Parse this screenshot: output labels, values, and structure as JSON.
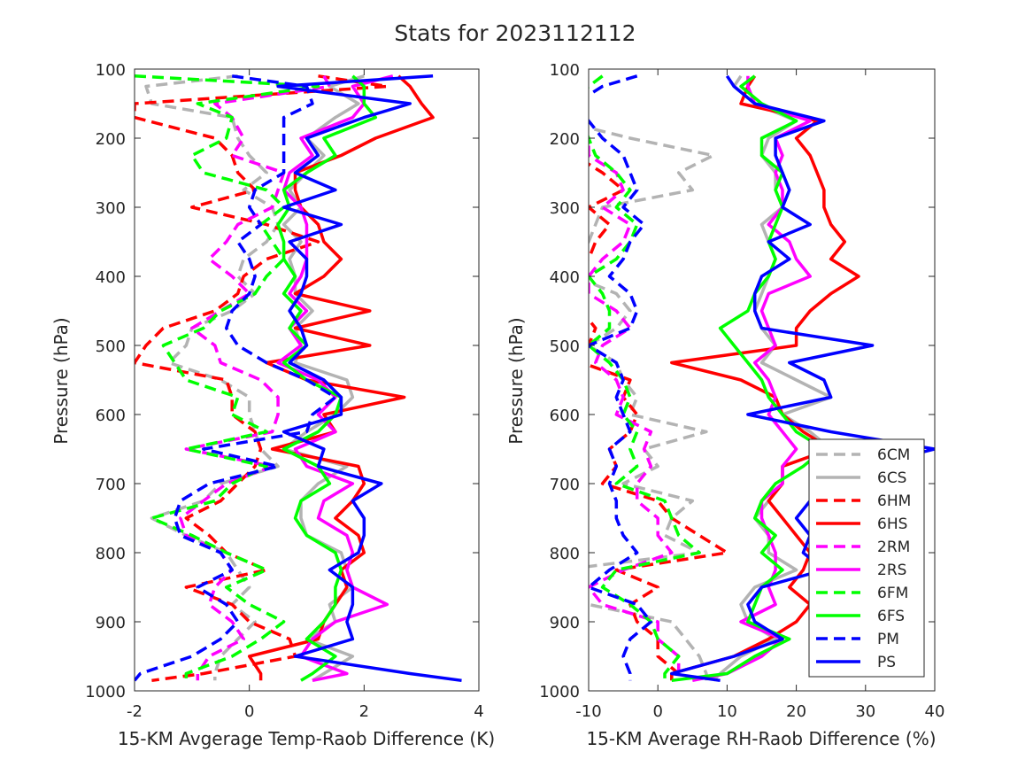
{
  "figure_title": "Stats for 2023112112",
  "chart_data": [
    {
      "type": "line",
      "xlabel": "15-KM Avgerage Temp-Raob Difference (K)",
      "ylabel": "Pressure (hPa)",
      "xlim": [
        -2,
        4
      ],
      "ylim": [
        100,
        1000
      ],
      "y_reversed": true,
      "xticks": [
        "-2",
        "0",
        "2",
        "4"
      ],
      "yticks": [
        "100",
        "200",
        "300",
        "400",
        "500",
        "600",
        "700",
        "800",
        "900",
        "1000"
      ],
      "grid": false,
      "y": [
        110,
        125,
        150,
        170,
        200,
        225,
        250,
        275,
        300,
        325,
        350,
        375,
        400,
        425,
        450,
        475,
        500,
        525,
        550,
        575,
        600,
        625,
        650,
        675,
        700,
        725,
        750,
        775,
        800,
        825,
        850,
        875,
        900,
        925,
        950,
        975,
        985
      ],
      "series": [
        {
          "name": "6CM",
          "color": "#b3b3b3",
          "dash": true,
          "values": [
            -0.2,
            -1.8,
            -1.7,
            -0.3,
            -0.2,
            0.0,
            0.3,
            -0.1,
            0.4,
            0.5,
            0.3,
            -0.1,
            -0.2,
            0.1,
            -0.3,
            -1.0,
            -1.1,
            -1.4,
            -0.5,
            0.0,
            0.0,
            0.1,
            0.2,
            0.5,
            -0.5,
            -0.8,
            -1.7,
            -1.1,
            -0.4,
            -0.2,
            0.0,
            -0.3,
            0.1,
            -0.2,
            -0.5,
            -0.6,
            -0.6
          ]
        },
        {
          "name": "6CS",
          "color": "#b3b3b3",
          "dash": false,
          "values": [
            2.0,
            1.4,
            1.9,
            1.5,
            1.0,
            1.3,
            1.0,
            0.7,
            0.9,
            0.6,
            0.9,
            0.7,
            0.8,
            0.8,
            1.1,
            0.8,
            0.9,
            0.8,
            1.7,
            1.8,
            1.5,
            1.0,
            0.6,
            1.7,
            1.2,
            0.9,
            0.9,
            1.0,
            1.6,
            1.7,
            1.8,
            1.4,
            1.5,
            1.0,
            1.8,
            1.3,
            1.1
          ]
        },
        {
          "name": "6HM",
          "color": "#ff0000",
          "dash": true,
          "values": [
            1.2,
            2.4,
            -2.0,
            -2.0,
            -0.6,
            -0.3,
            -0.2,
            0.1,
            -1.0,
            0.3,
            1.2,
            0.3,
            -0.1,
            -0.2,
            -0.6,
            -1.5,
            -1.8,
            -2.0,
            -0.4,
            -0.3,
            -0.3,
            0.1,
            0.2,
            0.1,
            -0.2,
            -0.5,
            -1.1,
            -0.7,
            -0.4,
            0.3,
            -1.1,
            -0.3,
            0.0,
            0.7,
            0.8,
            -0.8,
            -1.7
          ]
        },
        {
          "name": "6HS",
          "color": "#ff0000",
          "dash": false,
          "values": [
            2.6,
            2.8,
            3.0,
            3.2,
            2.2,
            1.6,
            0.8,
            0.8,
            0.9,
            1.2,
            1.3,
            1.6,
            1.3,
            0.8,
            2.1,
            0.8,
            2.1,
            0.3,
            1.0,
            2.7,
            1.3,
            1.5,
            0.4,
            1.9,
            2.0,
            1.8,
            1.5,
            1.9,
            2.0,
            1.6,
            1.7,
            1.5,
            1.3,
            1.2,
            0.0,
            0.2,
            0.2
          ]
        },
        {
          "name": "2RM",
          "color": "#ff00ff",
          "dash": true,
          "values": [
            1.3,
            1.4,
            -0.6,
            -0.3,
            -0.1,
            -0.3,
            0.6,
            0.5,
            0.4,
            -0.2,
            -0.4,
            -0.7,
            -0.3,
            0.0,
            -0.5,
            -1.0,
            -0.6,
            -0.5,
            0.2,
            0.5,
            0.5,
            0.4,
            -1.1,
            0.4,
            -0.4,
            -0.8,
            -1.2,
            -1.1,
            -0.5,
            -0.3,
            -0.6,
            -0.7,
            -0.3,
            -0.1,
            -0.7,
            -0.9,
            -0.9
          ]
        },
        {
          "name": "2RS",
          "color": "#ff00ff",
          "dash": false,
          "values": [
            2.5,
            1.8,
            2.0,
            1.8,
            0.9,
            1.1,
            0.7,
            0.6,
            0.9,
            1.0,
            1.0,
            1.0,
            0.9,
            0.7,
            1.0,
            0.7,
            0.9,
            0.5,
            1.2,
            1.5,
            1.2,
            1.5,
            0.8,
            1.0,
            1.8,
            1.3,
            1.2,
            1.7,
            1.8,
            1.7,
            1.8,
            2.4,
            1.5,
            1.1,
            0.9,
            1.7,
            1.1
          ]
        },
        {
          "name": "6FM",
          "color": "#00ff00",
          "dash": true,
          "values": [
            -2.0,
            1.2,
            -0.9,
            -0.3,
            -0.4,
            -1.0,
            -0.8,
            0.3,
            0.6,
            0.2,
            0.4,
            0.6,
            0.3,
            0.1,
            -0.5,
            -0.8,
            -1.5,
            -1.3,
            -1.1,
            -0.2,
            -0.3,
            0.3,
            -1.1,
            0.3,
            -0.3,
            -0.6,
            -1.7,
            -1.0,
            -0.4,
            0.3,
            -0.4,
            0.0,
            0.6,
            0.2,
            -0.3,
            -1.1,
            -1.1
          ]
        },
        {
          "name": "6FS",
          "color": "#00ff00",
          "dash": false,
          "values": [
            1.8,
            2.0,
            2.0,
            2.2,
            1.3,
            1.5,
            1.0,
            0.6,
            0.7,
            0.5,
            0.6,
            0.6,
            0.8,
            0.6,
            0.9,
            0.7,
            1.0,
            0.6,
            1.0,
            1.6,
            1.5,
            1.2,
            0.6,
            1.2,
            1.4,
            0.9,
            0.8,
            1.0,
            1.5,
            1.6,
            1.5,
            1.5,
            1.3,
            1.0,
            1.5,
            1.1,
            0.9
          ]
        },
        {
          "name": "PM",
          "color": "#0000ff",
          "dash": true,
          "values": [
            -0.3,
            1.0,
            1.1,
            0.6,
            0.6,
            0.6,
            0.6,
            0.1,
            0.0,
            0.2,
            -0.2,
            0.0,
            0.1,
            0.0,
            -0.3,
            -0.4,
            -0.2,
            0.3,
            1.0,
            1.5,
            1.1,
            1.0,
            -0.8,
            0.5,
            -0.7,
            -1.2,
            -1.3,
            -1.2,
            -0.5,
            -0.3,
            -0.9,
            -0.4,
            -0.2,
            -0.5,
            -1.0,
            -1.9,
            -2.0
          ]
        },
        {
          "name": "PS",
          "color": "#0000ff",
          "dash": false,
          "values": [
            3.2,
            0.5,
            2.8,
            2.0,
            1.0,
            1.2,
            0.8,
            1.5,
            0.6,
            1.6,
            0.7,
            1.0,
            1.0,
            0.9,
            0.7,
            0.9,
            1.0,
            0.7,
            1.3,
            1.6,
            1.6,
            0.6,
            1.3,
            1.2,
            2.3,
            1.8,
            2.0,
            2.0,
            1.9,
            1.4,
            1.8,
            1.8,
            1.7,
            1.8,
            0.8,
            2.8,
            3.7
          ]
        }
      ]
    },
    {
      "type": "line",
      "xlabel": "15-KM Average RH-Raob Difference (%)",
      "ylabel": "Pressure (hPa)",
      "xlim": [
        -10,
        40
      ],
      "ylim": [
        100,
        1000
      ],
      "y_reversed": true,
      "xticks": [
        "-10",
        "0",
        "10",
        "20",
        "30",
        "40"
      ],
      "yticks": [
        "100",
        "200",
        "300",
        "400",
        "500",
        "600",
        "700",
        "800",
        "900",
        "1000"
      ],
      "grid": false,
      "legend": {
        "position": "lower-right",
        "entries": [
          "6CM",
          "6CS",
          "6HM",
          "6HS",
          "2RM",
          "2RS",
          "6FM",
          "6FS",
          "PM",
          "PS"
        ]
      },
      "y": [
        110,
        125,
        150,
        175,
        200,
        225,
        250,
        275,
        300,
        325,
        350,
        375,
        400,
        425,
        450,
        475,
        500,
        525,
        550,
        575,
        600,
        625,
        650,
        675,
        700,
        725,
        750,
        775,
        800,
        825,
        850,
        875,
        900,
        925,
        950,
        975,
        985
      ],
      "series": [
        {
          "name": "6CM",
          "color": "#b3b3b3",
          "dash": true,
          "values": [
            -12,
            -14,
            -20,
            -14,
            -4,
            8,
            3,
            5,
            -8,
            -9,
            -10,
            -12,
            -12,
            -6,
            -4,
            -6,
            -10,
            -6,
            -5,
            -3,
            -4,
            7,
            -2,
            0,
            -5,
            5,
            2,
            1,
            6,
            -14,
            -14,
            -10,
            2,
            4,
            6,
            7,
            7
          ]
        },
        {
          "name": "6CS",
          "color": "#b3b3b3",
          "dash": false,
          "values": [
            12,
            11,
            14,
            20,
            16,
            15,
            17,
            17,
            18,
            15,
            16,
            17,
            16,
            15,
            14,
            15,
            17,
            15,
            20,
            25,
            18,
            22,
            25,
            18,
            18,
            16,
            14,
            16,
            16,
            20,
            14,
            12,
            13,
            17,
            12,
            9,
            8
          ]
        },
        {
          "name": "6HM",
          "color": "#ff0000",
          "dash": true,
          "values": [
            -14,
            -17,
            -20,
            -12,
            -10,
            -12,
            -8,
            -5,
            -10,
            -7,
            -9,
            -10,
            -14,
            -12,
            -11,
            -9,
            -10,
            -11,
            -4,
            -5,
            -3,
            -4,
            -7,
            -6,
            -8,
            0,
            2,
            6,
            10,
            -6,
            0,
            -4,
            -3,
            0,
            0,
            3,
            3
          ]
        },
        {
          "name": "6HS",
          "color": "#ff0000",
          "dash": false,
          "values": [
            14,
            13,
            12,
            23,
            20,
            22,
            23,
            24,
            24,
            25,
            27,
            25,
            29,
            25,
            22,
            20,
            20,
            2,
            12,
            17,
            18,
            21,
            25,
            18,
            18,
            16,
            18,
            20,
            22,
            21,
            19,
            22,
            20,
            16,
            11,
            2,
            2
          ]
        },
        {
          "name": "2RM",
          "color": "#ff00ff",
          "dash": true,
          "values": [
            -14,
            -15,
            -19,
            -14,
            -10,
            -10,
            -6,
            -5,
            -8,
            -4,
            -5,
            -8,
            -10,
            -10,
            -6,
            -4,
            -8,
            -9,
            -6,
            -5,
            -6,
            -1,
            -2,
            -1,
            -3,
            -3,
            0,
            0,
            2,
            -5,
            -10,
            -8,
            0,
            0,
            3,
            3,
            3
          ]
        },
        {
          "name": "2RS",
          "color": "#ff00ff",
          "dash": false,
          "values": [
            13,
            13,
            14,
            22,
            17,
            18,
            17,
            18,
            18,
            16,
            19,
            20,
            22,
            16,
            15,
            16,
            17,
            14,
            16,
            17,
            16,
            18,
            20,
            18,
            18,
            15,
            15,
            16,
            17,
            17,
            16,
            17,
            12,
            18,
            15,
            10,
            5
          ]
        },
        {
          "name": "6FM",
          "color": "#00ff00",
          "dash": true,
          "values": [
            -8,
            -10,
            -12,
            -11,
            -10,
            -9,
            -6,
            -4,
            -6,
            -3,
            -4,
            -6,
            -10,
            -8,
            -7,
            -7,
            -10,
            -7,
            -5,
            -4,
            -5,
            -3,
            -4,
            -3,
            -6,
            1,
            2,
            3,
            6,
            -6,
            -8,
            -4,
            -1,
            0,
            3,
            1,
            1
          ]
        },
        {
          "name": "6FS",
          "color": "#00ff00",
          "dash": false,
          "values": [
            14,
            12,
            15,
            20,
            15,
            15,
            18,
            17,
            18,
            17,
            16,
            17,
            16,
            14,
            13,
            9,
            11,
            13,
            15,
            16,
            18,
            20,
            24,
            21,
            17,
            15,
            14,
            17,
            15,
            18,
            15,
            14,
            13,
            19,
            14,
            10,
            2
          ]
        },
        {
          "name": "PM",
          "color": "#0000ff",
          "dash": true,
          "values": [
            -3,
            -8,
            -12,
            -10,
            -8,
            -5,
            -4,
            -3,
            -5,
            -2,
            -4,
            -5,
            -7,
            -4,
            -3,
            -4,
            -10,
            -6,
            -5,
            -6,
            -5,
            -4,
            -7,
            -6,
            -7,
            -6,
            -6,
            -5,
            -3,
            -7,
            -10,
            -3,
            -1,
            -4,
            -5,
            -4,
            -4
          ]
        },
        {
          "name": "PS",
          "color": "#0000ff",
          "dash": false,
          "values": [
            10,
            11,
            14,
            24,
            17,
            17,
            18,
            19,
            18,
            22,
            16,
            19,
            15,
            14,
            14,
            15,
            31,
            19,
            24,
            25,
            13,
            25,
            40,
            30,
            24,
            22,
            20,
            22,
            21,
            24,
            15,
            13,
            14,
            18,
            11,
            2,
            9
          ]
        }
      ]
    }
  ]
}
